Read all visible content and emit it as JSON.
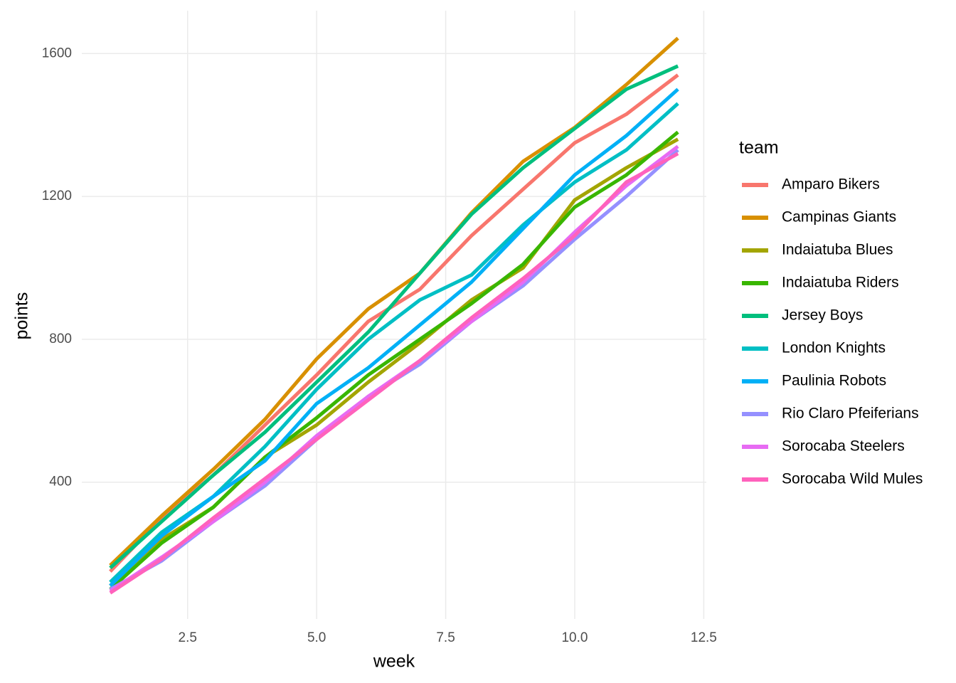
{
  "chart_data": {
    "type": "line",
    "x_label": "week",
    "y_label": "points",
    "legend_title": "team",
    "x": [
      1,
      2,
      3,
      4,
      5,
      6,
      7,
      8,
      9,
      10,
      11,
      12
    ],
    "xlim": [
      0.45,
      12.55
    ],
    "xticks": [
      2.5,
      {
        "value": 5,
        "label": "5.0"
      },
      7.5,
      {
        "value": 10,
        "label": "10.0"
      },
      12.5
    ],
    "ylim": [
      17,
      1720
    ],
    "yticks": [
      400,
      800,
      1200,
      1600
    ],
    "grid": true,
    "legend": "right",
    "series": [
      {
        "name": "Amparo Bikers",
        "color": "#F8766D",
        "values": [
          150,
          300,
          420,
          560,
          700,
          850,
          940,
          1090,
          1220,
          1350,
          1430,
          1540
        ]
      },
      {
        "name": "Campinas Giants",
        "color": "#D89000",
        "values": [
          167,
          306,
          436,
          576,
          745,
          885,
          985,
          1154,
          1298,
          1393,
          1513,
          1643
        ]
      },
      {
        "name": "Indaiatuba Blues",
        "color": "#A3A500",
        "values": [
          110,
          240,
          330,
          470,
          560,
          680,
          790,
          910,
          1000,
          1190,
          1280,
          1360
        ]
      },
      {
        "name": "Indaiatuba Riders",
        "color": "#39B600",
        "values": [
          100,
          230,
          330,
          470,
          580,
          700,
          800,
          900,
          1010,
          1170,
          1260,
          1380
        ]
      },
      {
        "name": "Jersey Boys",
        "color": "#00BF7D",
        "values": [
          160,
          290,
          420,
          540,
          680,
          820,
          985,
          1150,
          1280,
          1390,
          1500,
          1565
        ]
      },
      {
        "name": "London Knights",
        "color": "#00BFC4",
        "values": [
          120,
          260,
          360,
          500,
          660,
          800,
          910,
          980,
          1120,
          1240,
          1330,
          1460
        ]
      },
      {
        "name": "Paulinia Robots",
        "color": "#00B0F6",
        "values": [
          110,
          250,
          360,
          460,
          620,
          720,
          840,
          960,
          1110,
          1260,
          1370,
          1500
        ]
      },
      {
        "name": "Rio Claro Pfeiferians",
        "color": "#9590FF",
        "values": [
          100,
          180,
          290,
          390,
          520,
          640,
          730,
          850,
          950,
          1080,
          1200,
          1330
        ]
      },
      {
        "name": "Sorocaba Steelers",
        "color": "#E76BF3",
        "values": [
          95,
          190,
          290,
          400,
          530,
          640,
          740,
          850,
          960,
          1100,
          1230,
          1340
        ]
      },
      {
        "name": "Sorocaba Wild Mules",
        "color": "#FF62BC",
        "values": [
          90,
          185,
          300,
          410,
          520,
          630,
          740,
          860,
          970,
          1090,
          1240,
          1320
        ]
      }
    ]
  }
}
